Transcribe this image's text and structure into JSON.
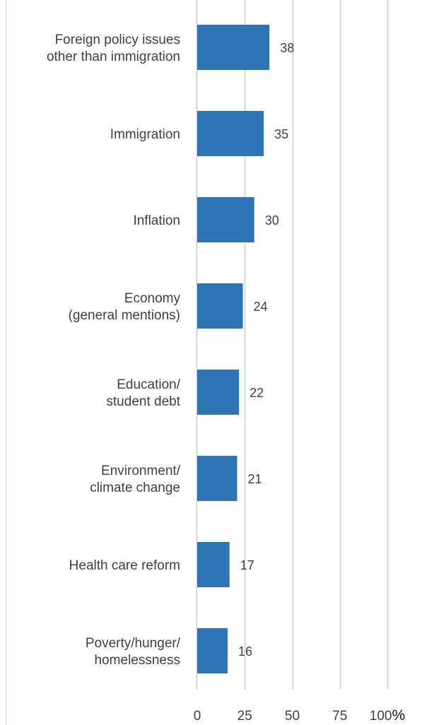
{
  "chart_data": {
    "type": "bar",
    "orientation": "horizontal",
    "categories": [
      [
        "Foreign policy issues",
        "other than immigration"
      ],
      [
        "Immigration"
      ],
      [
        "Inflation"
      ],
      [
        "Economy",
        "(general mentions)"
      ],
      [
        "Education/",
        "student debt"
      ],
      [
        "Environment/",
        "climate change"
      ],
      [
        "Health care reform"
      ],
      [
        "Poverty/hunger/",
        "homelessness"
      ]
    ],
    "values": [
      38,
      35,
      30,
      24,
      22,
      21,
      17,
      16
    ],
    "x_ticks": [
      "0",
      "25",
      "50",
      "75",
      "100"
    ],
    "x_tick_suffix": "%",
    "xlim": [
      0,
      100
    ],
    "grid": true,
    "bar_color": "#2E75B6",
    "grid_color": "#D9D9D9",
    "title": "",
    "xlabel": "",
    "ylabel": ""
  }
}
